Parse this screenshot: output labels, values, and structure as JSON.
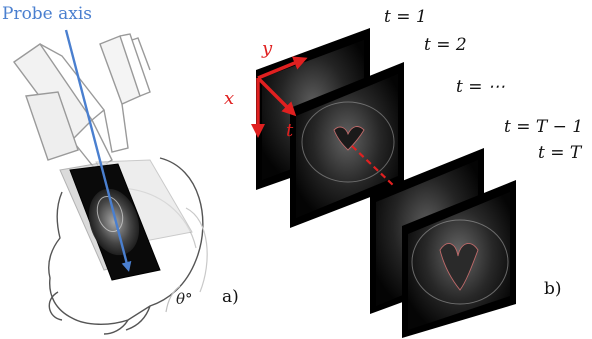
{
  "panel_a": {
    "probe_axis_label": "Probe axis",
    "angle_label": "θ°",
    "panel_label": "a)",
    "colors": {
      "probe_axis": "#4a7fcf",
      "outline": "#8a8a8a",
      "plane": "#9a9a9a"
    }
  },
  "panel_b": {
    "axis_x": "x",
    "axis_y": "y",
    "axis_t": "t",
    "time_labels": [
      "t = 1",
      "t = 2",
      "t = ⋯",
      "t = T − 1",
      "t = T"
    ],
    "panel_label": "b)",
    "colors": {
      "axes": "#e02020",
      "link": "#e02020",
      "frame": "#111111"
    }
  }
}
